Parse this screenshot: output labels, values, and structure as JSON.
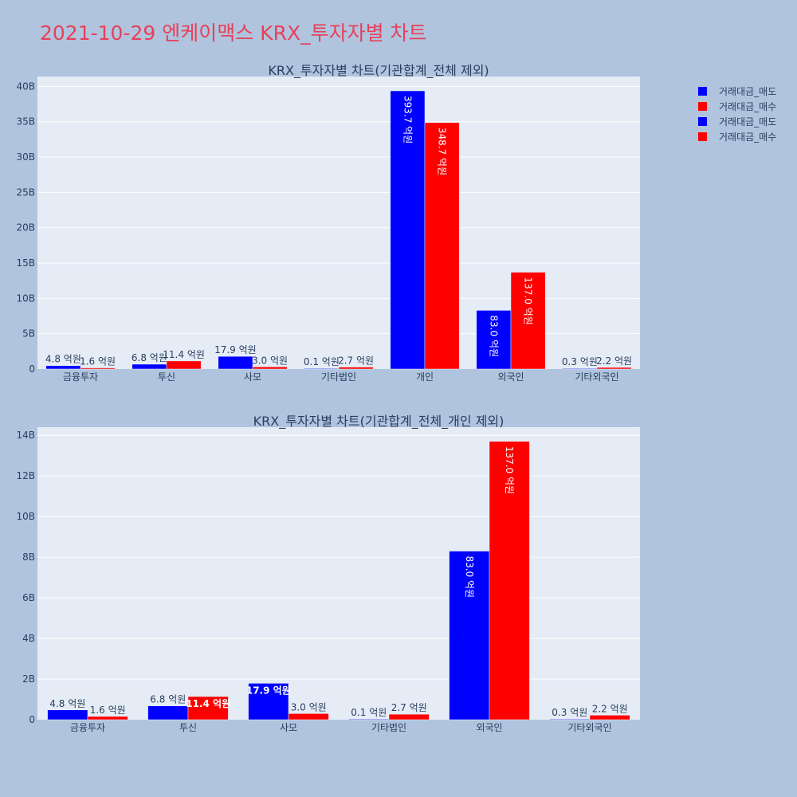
{
  "title": "2021-10-29 엔케이맥스 KRX_투자자별 차트",
  "legend": [
    {
      "label": "거래대금_매도",
      "color": "#0000ff"
    },
    {
      "label": "거래대금_매수",
      "color": "#ff0000"
    },
    {
      "label": "거래대금_매도",
      "color": "#0000ff"
    },
    {
      "label": "거래대금_매수",
      "color": "#ff0000"
    }
  ],
  "chart_data": [
    {
      "type": "bar",
      "title": "KRX_투자자별 차트(기관합계_전체 제외)",
      "categories": [
        "금융투자",
        "투신",
        "사모",
        "기타법인",
        "개인",
        "외국인",
        "기타외국인"
      ],
      "series": [
        {
          "name": "거래대금_매도",
          "color": "#0000ff",
          "values": [
            0.48,
            0.68,
            1.79,
            0.01,
            39.37,
            8.3,
            0.03
          ],
          "labels": [
            "4.8 억원",
            "6.8 억원",
            "17.9 억원",
            "0.1 억원",
            "393.7 억원",
            "83.0 억원",
            "0.3 억원"
          ]
        },
        {
          "name": "거래대금_매수",
          "color": "#ff0000",
          "values": [
            0.16,
            1.14,
            0.3,
            0.27,
            34.87,
            13.7,
            0.22
          ],
          "labels": [
            "1.6 억원",
            "11.4 억원",
            "3.0 억원",
            "2.7 억원",
            "348.7 억원",
            "137.0 억원",
            "2.2 억원"
          ]
        }
      ],
      "yticks": [
        "0",
        "5B",
        "10B",
        "15B",
        "20B",
        "25B",
        "30B",
        "35B",
        "40B"
      ],
      "ytick_values": [
        0,
        5,
        10,
        15,
        20,
        25,
        30,
        35,
        40
      ],
      "ylim": [
        0,
        41.4
      ]
    },
    {
      "type": "bar",
      "title": "KRX_투자자별 차트(기관합계_전체_개인 제외)",
      "categories": [
        "금융투자",
        "투신",
        "사모",
        "기타법인",
        "외국인",
        "기타외국인"
      ],
      "series": [
        {
          "name": "거래대금_매도",
          "color": "#0000ff",
          "values": [
            0.48,
            0.68,
            1.79,
            0.01,
            8.3,
            0.03
          ],
          "labels": [
            "4.8 억원",
            "6.8 억원",
            "17.9 억원",
            "0.1 억원",
            "83.0 억원",
            "0.3 억원"
          ]
        },
        {
          "name": "거래대금_매수",
          "color": "#ff0000",
          "values": [
            0.16,
            1.14,
            0.3,
            0.27,
            13.7,
            0.22
          ],
          "labels": [
            "1.6 억원",
            "11.4 억원",
            "3.0 억원",
            "2.7 억원",
            "137.0 억원",
            "2.2 억원"
          ]
        }
      ],
      "yticks": [
        "0",
        "2B",
        "4B",
        "6B",
        "8B",
        "10B",
        "12B",
        "14B"
      ],
      "ytick_values": [
        0,
        2,
        4,
        6,
        8,
        10,
        12,
        14
      ],
      "ylim": [
        0,
        14.4
      ]
    }
  ]
}
